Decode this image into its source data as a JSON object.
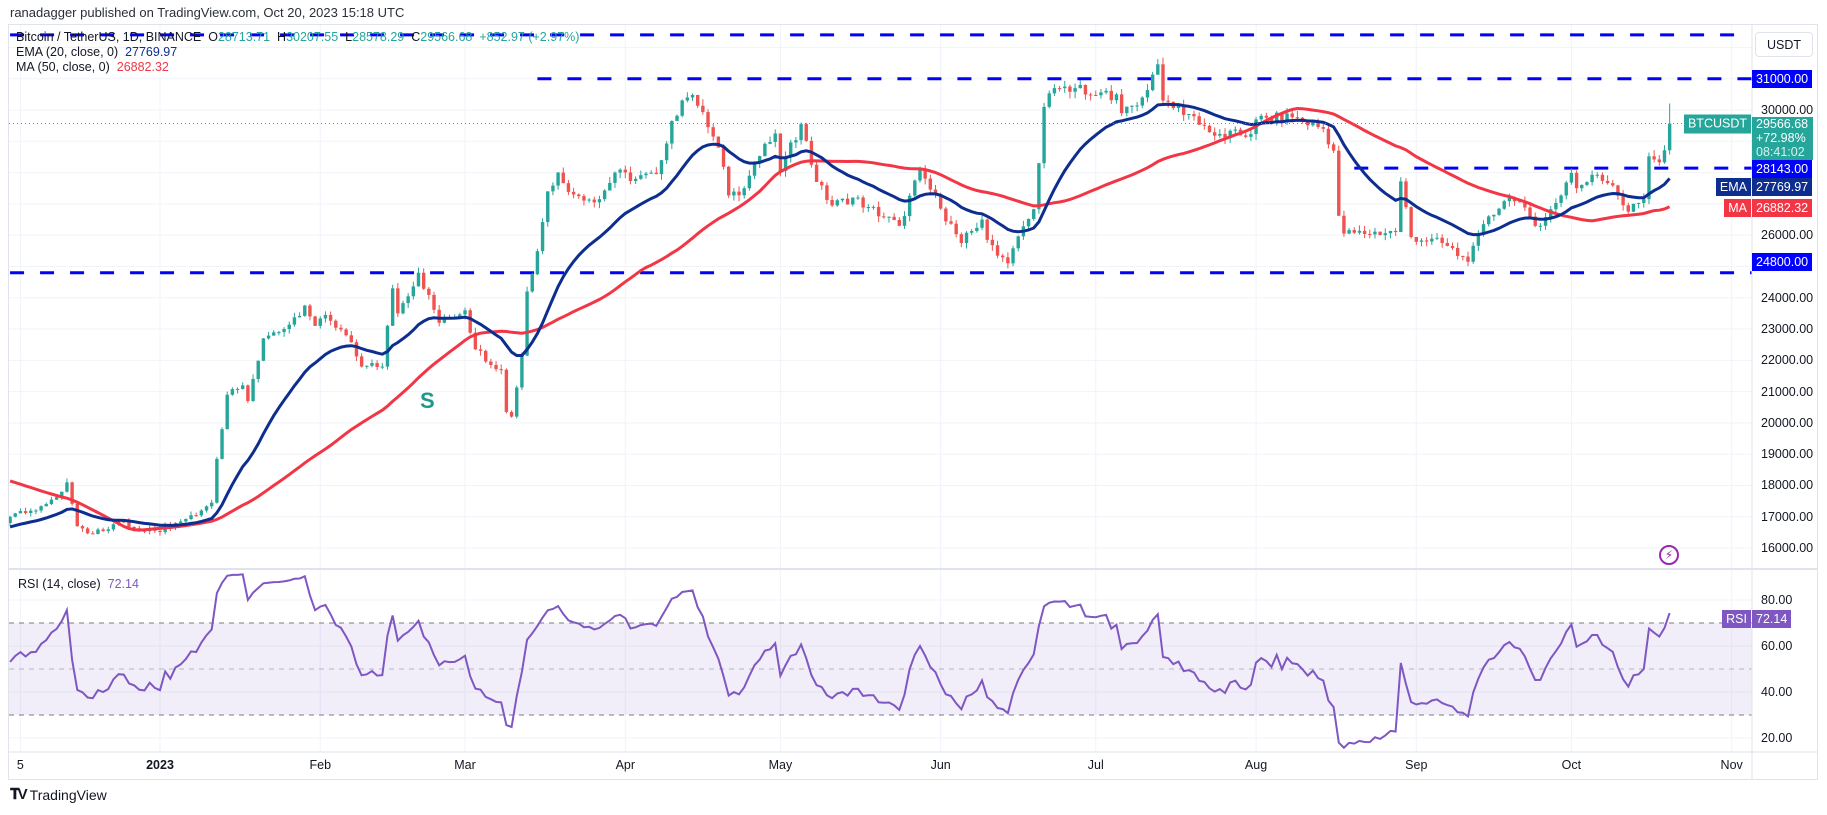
{
  "header": {
    "published": "ranadagger published on TradingView.com, Oct 20, 2023 15:18 UTC"
  },
  "legend": {
    "symbol": "Bitcoin / TetherUS, 1D, BINANCE",
    "o_label": "O",
    "o": "28713.71",
    "h_label": "H",
    "h": "30207.55",
    "l_label": "L",
    "l": "28578.29",
    "c_label": "C",
    "c": "29566.68",
    "change": "+852.97 (+2.97%)",
    "ema_label": "EMA (20, close, 0)",
    "ema_value": "27769.97",
    "ma_label": "MA (50, close, 0)",
    "ma_value": "26882.32",
    "rsi_label": "RSI (14, close)",
    "rsi_value": "72.14"
  },
  "price_axis": {
    "currency": "USDT",
    "ticks": [
      "30000.00",
      "26000.00",
      "24000.00",
      "23000.00",
      "22000.00",
      "21000.00",
      "20000.00",
      "19000.00",
      "18000.00",
      "17000.00",
      "16000.00"
    ]
  },
  "rsi_axis": {
    "ticks": [
      "80.00",
      "60.00",
      "40.00",
      "20.00"
    ]
  },
  "time_axis": {
    "labels": [
      {
        "label": "5",
        "date": "2022-12-05"
      },
      {
        "label": "2023",
        "date": "2023-01-01"
      },
      {
        "label": "Feb",
        "date": "2023-02-01"
      },
      {
        "label": "Mar",
        "date": "2023-03-01"
      },
      {
        "label": "Apr",
        "date": "2023-04-01"
      },
      {
        "label": "May",
        "date": "2023-05-01"
      },
      {
        "label": "Jun",
        "date": "2023-06-01"
      },
      {
        "label": "Jul",
        "date": "2023-07-01"
      },
      {
        "label": "Aug",
        "date": "2023-08-01"
      },
      {
        "label": "Sep",
        "date": "2023-09-01"
      },
      {
        "label": "Oct",
        "date": "2023-10-01"
      },
      {
        "label": "Nov",
        "date": "2023-11-01"
      }
    ]
  },
  "markers": {
    "level_31000": "31000.00",
    "level_28143": "28143.00",
    "level_24800": "24800.00",
    "symbol_tag": "BTCUSDT",
    "last_price": "29566.68",
    "last_change": "+72.98%",
    "countdown": "08:41:02",
    "ema_tag": "EMA",
    "ema_value": "27769.97",
    "ma_tag": "MA",
    "ma_value": "26882.32",
    "rsi_tag": "RSI",
    "rsi_value": "72.14",
    "annotation": "S",
    "alert_icon": "lightning-icon"
  },
  "footer": {
    "brand": "TradingView"
  },
  "colors": {
    "up": "#26a69a",
    "down": "#ef5350",
    "ema": "#0d2e8f",
    "ma": "#f23645",
    "levels": "#0000ff",
    "rsi": "#7e57c2"
  },
  "chart_data": {
    "type": "candlestick",
    "interval": "1D",
    "y_scale": "linear",
    "ylim": [
      15500,
      32700
    ],
    "rsi_ylim": [
      12,
      92
    ],
    "grid": true,
    "last_candle": {
      "date": "2023-10-20",
      "open": 28713.71,
      "high": 30207.55,
      "low": 28578.29,
      "close": 29566.68
    },
    "indicators": {
      "ema": {
        "period": 20,
        "last": 27769.97
      },
      "ma": {
        "period": 50,
        "last": 26882.32
      },
      "rsi": {
        "period": 14,
        "last": 72.14,
        "levels": [
          70,
          50,
          30
        ]
      }
    },
    "horizontal_levels": [
      {
        "value": 32400,
        "from": "2022-12-03",
        "labeled": false
      },
      {
        "value": 31000,
        "from": "2023-03-15",
        "labeled": true
      },
      {
        "value": 28143,
        "from": "2023-08-20",
        "labeled": true
      },
      {
        "value": 24800,
        "from": "2022-12-03",
        "labeled": true
      }
    ],
    "annotation": {
      "text": "S",
      "date": "2023-03-11"
    },
    "closes": [
      [
        "2022-12-03",
        17000
      ],
      [
        "2022-12-08",
        17200
      ],
      [
        "2022-12-13",
        17800
      ],
      [
        "2022-12-14",
        18100
      ],
      [
        "2022-12-16",
        16700
      ],
      [
        "2022-12-19",
        16450
      ],
      [
        "2022-12-24",
        16850
      ],
      [
        "2022-12-28",
        16550
      ],
      [
        "2022-12-31",
        16550
      ],
      [
        "2023-01-05",
        16850
      ],
      [
        "2023-01-09",
        17200
      ],
      [
        "2023-01-11",
        17450
      ],
      [
        "2023-01-12",
        18850
      ],
      [
        "2023-01-14",
        20900
      ],
      [
        "2023-01-17",
        21200
      ],
      [
        "2023-01-18",
        20700
      ],
      [
        "2023-01-21",
        22700
      ],
      [
        "2023-01-25",
        23000
      ],
      [
        "2023-01-29",
        23750
      ],
      [
        "2023-01-31",
        23100
      ],
      [
        "2023-02-02",
        23450
      ],
      [
        "2023-02-06",
        22800
      ],
      [
        "2023-02-09",
        21800
      ],
      [
        "2023-02-13",
        21800
      ],
      [
        "2023-02-15",
        24300
      ],
      [
        "2023-02-16",
        23500
      ],
      [
        "2023-02-20",
        24800
      ],
      [
        "2023-02-24",
        23200
      ],
      [
        "2023-03-01",
        23600
      ],
      [
        "2023-03-03",
        22350
      ],
      [
        "2023-03-08",
        21700
      ],
      [
        "2023-03-09",
        20350
      ],
      [
        "2023-03-10",
        20200
      ],
      [
        "2023-03-12",
        22150
      ],
      [
        "2023-03-13",
        24200
      ],
      [
        "2023-03-14",
        24750
      ],
      [
        "2023-03-17",
        27400
      ],
      [
        "2023-03-19",
        28000
      ],
      [
        "2023-03-22",
        27300
      ],
      [
        "2023-03-27",
        27150
      ],
      [
        "2023-03-30",
        28000
      ],
      [
        "2023-04-03",
        27800
      ],
      [
        "2023-04-07",
        27950
      ],
      [
        "2023-04-10",
        29650
      ],
      [
        "2023-04-13",
        30400
      ],
      [
        "2023-04-14",
        30480
      ],
      [
        "2023-04-17",
        29450
      ],
      [
        "2023-04-19",
        28800
      ],
      [
        "2023-04-21",
        27270
      ],
      [
        "2023-04-24",
        27500
      ],
      [
        "2023-04-26",
        28300
      ],
      [
        "2023-04-30",
        29250
      ],
      [
        "2023-05-01",
        28050
      ],
      [
        "2023-05-05",
        29550
      ],
      [
        "2023-05-08",
        27700
      ],
      [
        "2023-05-11",
        26950
      ],
      [
        "2023-05-15",
        27200
      ],
      [
        "2023-05-18",
        26900
      ],
      [
        "2023-05-24",
        26300
      ],
      [
        "2023-05-28",
        28080
      ],
      [
        "2023-06-01",
        26850
      ],
      [
        "2023-06-05",
        25750
      ],
      [
        "2023-06-09",
        26500
      ],
      [
        "2023-06-10",
        25850
      ],
      [
        "2023-06-14",
        25100
      ],
      [
        "2023-06-15",
        25580
      ],
      [
        "2023-06-19",
        26830
      ],
      [
        "2023-06-20",
        28300
      ],
      [
        "2023-06-21",
        30100
      ],
      [
        "2023-06-23",
        30700
      ],
      [
        "2023-06-27",
        30700
      ],
      [
        "2023-06-30",
        30480
      ],
      [
        "2023-07-05",
        30500
      ],
      [
        "2023-07-06",
        29900
      ],
      [
        "2023-07-10",
        30400
      ],
      [
        "2023-07-13",
        31460
      ],
      [
        "2023-07-14",
        30300
      ],
      [
        "2023-07-20",
        29800
      ],
      [
        "2023-07-24",
        29180
      ],
      [
        "2023-07-31",
        29230
      ],
      [
        "2023-08-01",
        29700
      ],
      [
        "2023-08-08",
        29770
      ],
      [
        "2023-08-14",
        29400
      ],
      [
        "2023-08-16",
        28700
      ],
      [
        "2023-08-17",
        26620
      ],
      [
        "2023-08-18",
        26050
      ],
      [
        "2023-08-28",
        26100
      ],
      [
        "2023-08-29",
        27720
      ],
      [
        "2023-08-31",
        25940
      ],
      [
        "2023-09-06",
        25750
      ],
      [
        "2023-09-11",
        25150
      ],
      [
        "2023-09-15",
        26600
      ],
      [
        "2023-09-19",
        27200
      ],
      [
        "2023-09-25",
        26300
      ],
      [
        "2023-09-28",
        27030
      ],
      [
        "2023-10-01",
        27990
      ],
      [
        "2023-10-02",
        27500
      ],
      [
        "2023-10-06",
        27930
      ],
      [
        "2023-10-09",
        27590
      ],
      [
        "2023-10-12",
        26750
      ],
      [
        "2023-10-15",
        27150
      ],
      [
        "2023-10-16",
        28520
      ],
      [
        "2023-10-17",
        28420
      ],
      [
        "2023-10-18",
        28330
      ],
      [
        "2023-10-19",
        28713.71
      ],
      [
        "2023-10-20",
        29566.68
      ]
    ]
  }
}
